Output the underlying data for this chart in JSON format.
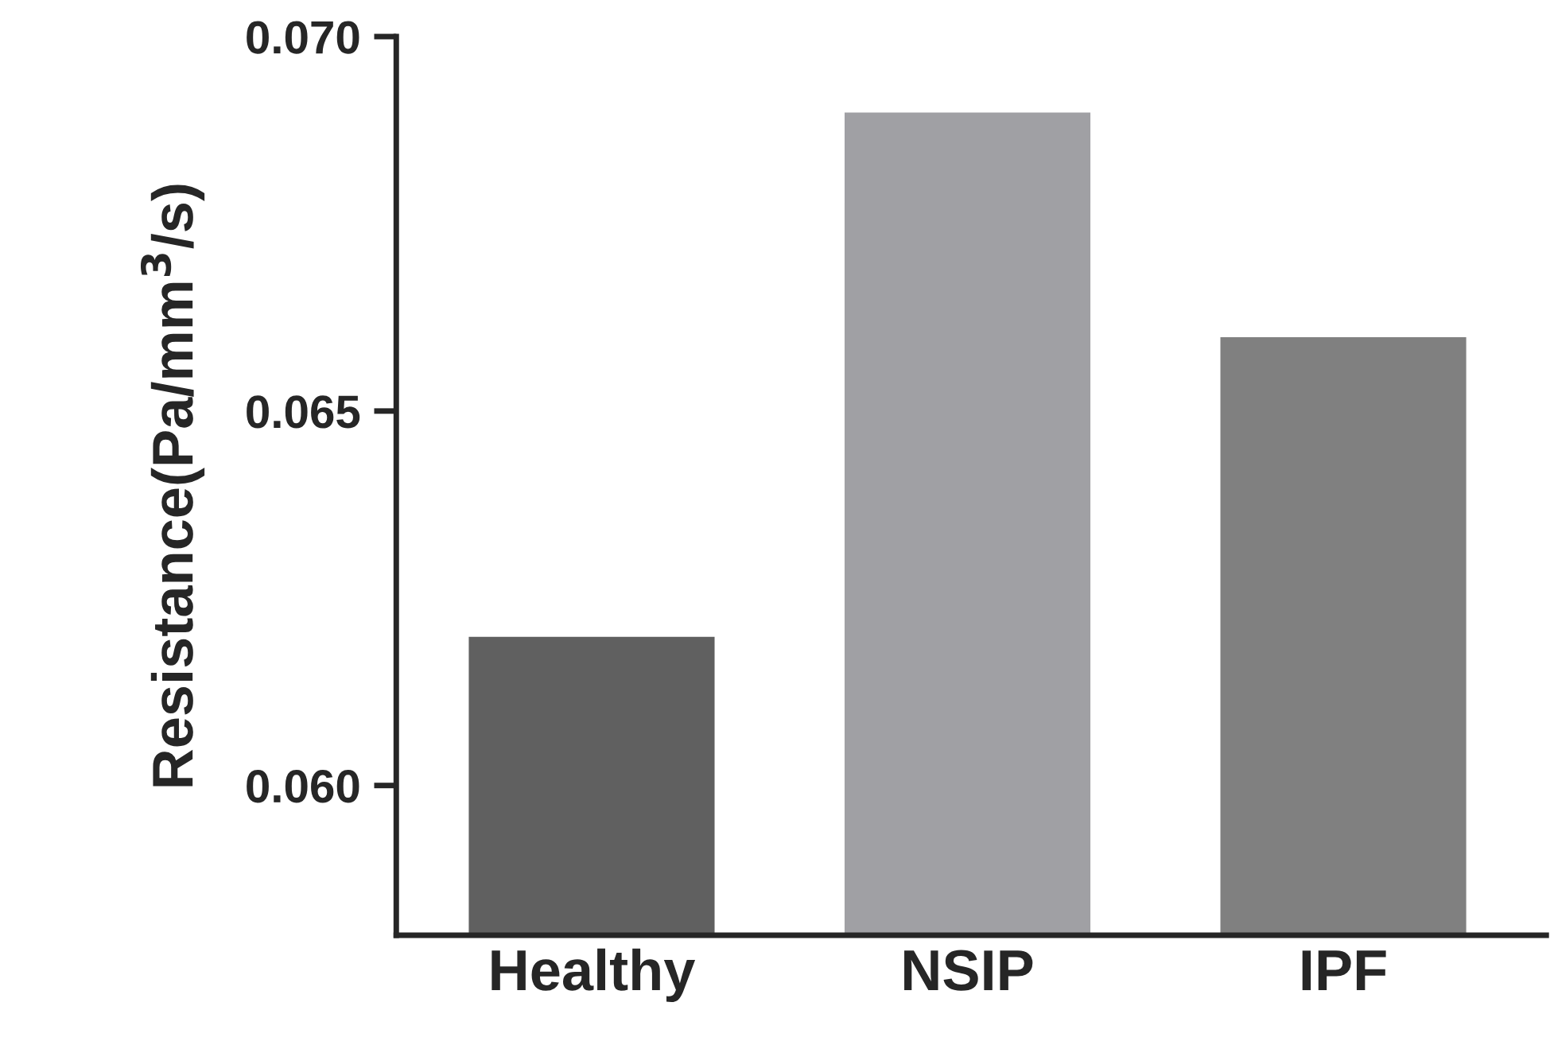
{
  "chart_data": {
    "type": "bar",
    "ylabel": "Resistance(Pa/mm$^{3}$/s)",
    "categories": [
      "Healthy",
      "NSIP",
      "IPF"
    ],
    "values": [
      0.062,
      0.069,
      0.066
    ],
    "colors": [
      "#606060",
      "#a0a0a4",
      "#808080"
    ],
    "ylim": [
      0.058,
      0.07
    ],
    "yticks": [
      {
        "value": 0.06,
        "label": "0.060"
      },
      {
        "value": 0.065,
        "label": "0.065"
      },
      {
        "value": 0.07,
        "label": "0.070"
      }
    ],
    "grid": false
  }
}
